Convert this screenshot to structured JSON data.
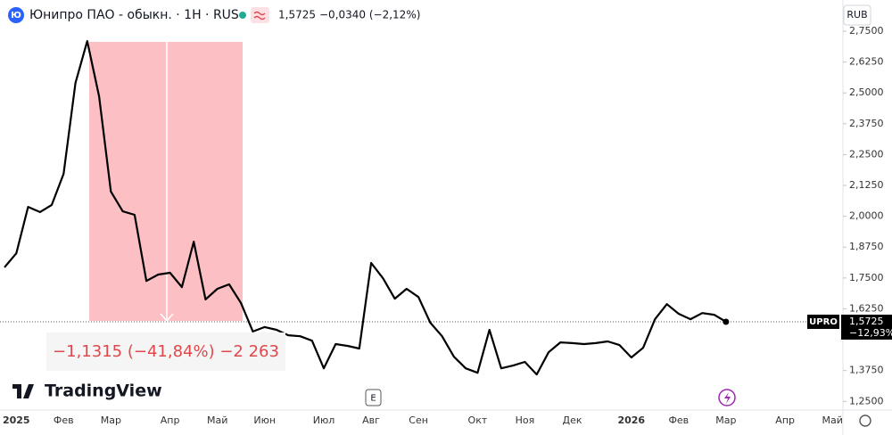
{
  "header": {
    "icon": "Ю",
    "symbol": "Юнипро ПАО - обыкн. · 1Н · RUS",
    "price": "1,5725",
    "change": "−0,0340 (−2,12%)",
    "currency": "RUB"
  },
  "chart_data": {
    "type": "line",
    "categories": [
      null,
      "2025",
      null,
      null,
      null,
      "Фев",
      null,
      null,
      null,
      "Мар",
      null,
      null,
      null,
      null,
      "Апр",
      null,
      null,
      null,
      "Май",
      null,
      null,
      null,
      "Июн",
      null,
      null,
      null,
      null,
      "Июл",
      null,
      null,
      null,
      "Авг",
      null,
      null,
      null,
      "Сен",
      null,
      null,
      null,
      null,
      "Окт",
      null,
      null,
      null,
      "Ноя",
      null,
      null,
      null,
      "Дек",
      null,
      null,
      null,
      null,
      "2026",
      null,
      null,
      null,
      "Фев",
      null,
      null,
      null,
      "Мар",
      null,
      null,
      null,
      null,
      "Апр",
      null,
      null,
      null,
      "Май"
    ],
    "series": [
      {
        "name": "UPRO",
        "color": "#000000",
        "values": [
          1.793,
          1.85,
          2.038,
          2.017,
          2.046,
          2.172,
          2.54,
          2.71,
          2.486,
          2.1,
          2.02,
          2.006,
          1.738,
          1.764,
          1.771,
          1.713,
          1.897,
          1.663,
          1.706,
          1.724,
          1.648,
          1.533,
          1.551,
          1.54,
          1.518,
          1.514,
          1.496,
          1.384,
          1.482,
          1.475,
          1.464,
          1.811,
          1.749,
          1.666,
          1.706,
          1.673,
          1.569,
          1.514,
          1.431,
          1.384,
          1.366,
          1.54,
          1.384,
          1.395,
          1.41,
          1.359,
          1.449,
          1.489,
          1.486,
          1.482,
          1.486,
          1.493,
          1.478,
          1.428,
          1.467,
          1.583,
          1.644,
          1.605,
          1.583,
          1.608,
          1.601,
          1.5725,
          null,
          null,
          null,
          null,
          null,
          null,
          null,
          null,
          null
        ]
      }
    ],
    "ylim": [
      1.2329,
      2.8764
    ],
    "yticks": [
      {
        "value": 2.75,
        "label": "2,7500"
      },
      {
        "value": 2.625,
        "label": "2,6250"
      },
      {
        "value": 2.5,
        "label": "2,5000"
      },
      {
        "value": 2.375,
        "label": "2,3750"
      },
      {
        "value": 2.25,
        "label": "2,2500"
      },
      {
        "value": 2.125,
        "label": "2,1250"
      },
      {
        "value": 2.0,
        "label": "2,0000"
      },
      {
        "value": 1.875,
        "label": "1,8750"
      },
      {
        "value": 1.75,
        "label": "1,7500"
      },
      {
        "value": 1.625,
        "label": "1,6250"
      },
      {
        "value": 1.375,
        "label": "1,3750"
      },
      {
        "value": 1.25,
        "label": "1,2500"
      }
    ],
    "last_price_label": "1,5725",
    "last_change_label": "−12,93%"
  },
  "measure": {
    "label": "−1,1315 (−41,84%) −2 263"
  },
  "branding": "TradingView",
  "event_marker": "E"
}
